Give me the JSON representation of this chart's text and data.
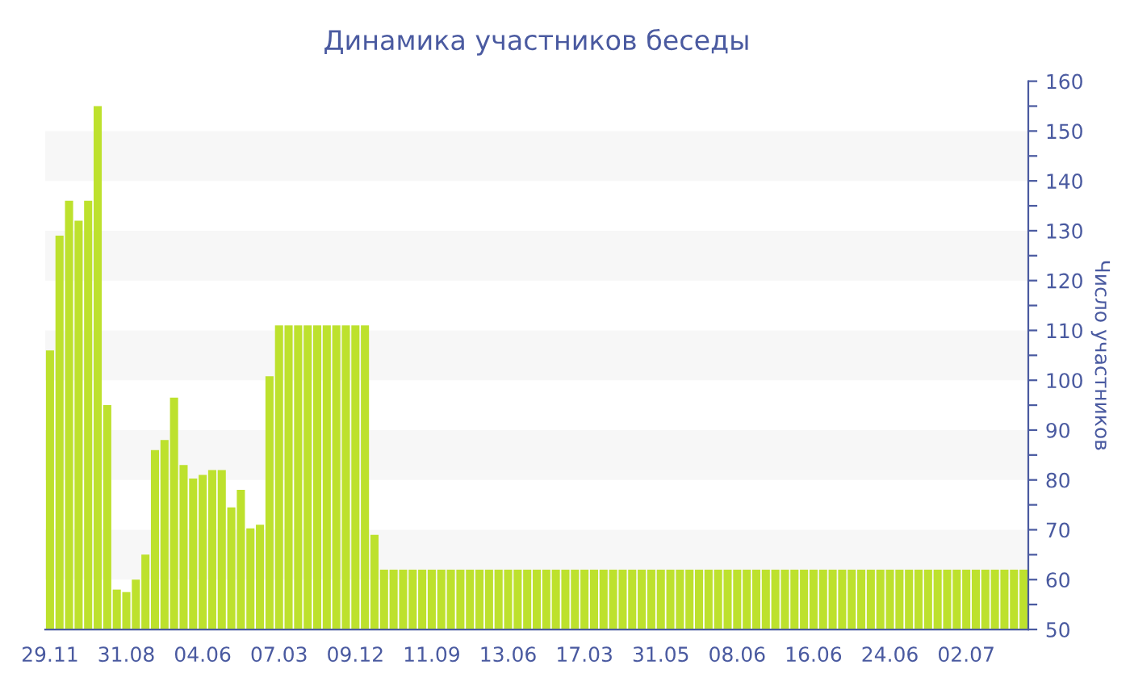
{
  "chart_data": {
    "type": "bar",
    "title": "Динамика участников беседы",
    "ylabel": "Число участников",
    "categories": [
      "29.11",
      null,
      null,
      null,
      null,
      null,
      null,
      null,
      "31.08",
      null,
      null,
      null,
      null,
      null,
      null,
      null,
      "04.06",
      null,
      null,
      null,
      null,
      null,
      null,
      null,
      "07.03",
      null,
      null,
      null,
      null,
      null,
      null,
      null,
      "09.12",
      null,
      null,
      null,
      null,
      null,
      null,
      null,
      "11.09",
      null,
      null,
      null,
      null,
      null,
      null,
      null,
      "13.06",
      null,
      null,
      null,
      null,
      null,
      null,
      null,
      "17.03",
      null,
      null,
      null,
      null,
      null,
      null,
      null,
      "31.05",
      null,
      null,
      null,
      null,
      null,
      null,
      null,
      "08.06",
      null,
      null,
      null,
      null,
      null,
      null,
      null,
      "16.06",
      null,
      null,
      null,
      null,
      null,
      null,
      null,
      "24.06",
      null,
      null,
      null,
      null,
      null,
      null,
      null,
      "02.07",
      null,
      null,
      null,
      null,
      null,
      null
    ],
    "values": [
      106,
      129,
      136,
      132,
      136,
      155,
      95,
      58,
      57.5,
      60,
      65,
      86,
      88,
      96.5,
      83,
      80.3,
      81,
      82,
      82,
      74.5,
      78,
      70.3,
      71,
      100.8,
      111,
      111,
      111,
      111,
      111,
      111,
      111,
      111,
      111,
      111,
      69,
      62,
      62,
      62,
      62,
      62,
      62,
      62,
      62,
      62,
      62,
      62,
      62,
      62,
      62,
      62,
      62,
      62,
      62,
      62,
      62,
      62,
      62,
      62,
      62,
      62,
      62,
      62,
      62,
      62,
      62,
      62,
      62,
      62,
      62,
      62,
      62,
      62,
      62,
      62,
      62,
      62,
      62,
      62,
      62,
      62,
      62,
      62,
      62,
      62,
      62,
      62,
      62,
      62,
      62,
      62,
      62,
      62,
      62,
      62,
      62,
      62,
      62,
      62,
      62,
      62,
      62,
      62,
      62
    ],
    "color": "#bde12d",
    "ylim": [
      50,
      160
    ],
    "yticks": [
      50,
      {
        "value": 55,
        "label": null
      },
      60,
      {
        "value": 65,
        "label": null
      },
      70,
      {
        "value": 75,
        "label": null
      },
      80,
      {
        "value": 85,
        "label": null
      },
      90,
      {
        "value": 95,
        "label": null
      },
      100,
      {
        "value": 105,
        "label": null
      },
      110,
      {
        "value": 115,
        "label": null
      },
      120,
      {
        "value": 125,
        "label": null
      },
      130,
      {
        "value": 135,
        "label": null
      },
      140,
      {
        "value": 145,
        "label": null
      },
      150,
      {
        "value": 155,
        "label": null
      },
      160
    ],
    "bands": [
      {
        "axis": "y",
        "from": 60,
        "to": 70,
        "color": "#f7f7f7"
      },
      {
        "axis": "y",
        "from": 80,
        "to": 90,
        "color": "#f7f7f7"
      },
      {
        "axis": "y",
        "from": 100,
        "to": 110,
        "color": "#f7f7f7"
      },
      {
        "axis": "y",
        "from": 120,
        "to": 130,
        "color": "#f7f7f7"
      },
      {
        "axis": "y",
        "from": 140,
        "to": 150,
        "color": "#f7f7f7"
      }
    ],
    "grid": false,
    "legend": false
  }
}
